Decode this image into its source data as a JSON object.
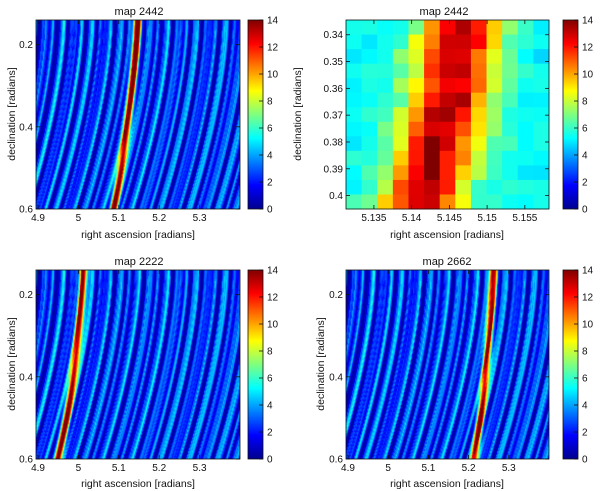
{
  "chart_data": [
    {
      "type": "heatmap",
      "title": "map 2442",
      "xlabel": "right ascension [radians]",
      "ylabel": "declination [radians]",
      "xlim": [
        4.895,
        5.4
      ],
      "ylim": [
        0.6,
        0.14
      ],
      "xticks": [
        4.9,
        5,
        5.1,
        5.2,
        5.3
      ],
      "xtick_labels": [
        "4.9",
        "5",
        "5.1",
        "5.2",
        "5.3"
      ],
      "yticks": [
        0.2,
        0.4,
        0.6
      ],
      "ytick_labels": [
        "0.2",
        "0.4",
        "0.6"
      ],
      "colorbar": {
        "min": 0,
        "max": 14,
        "ticks": [
          "0",
          "2",
          "4",
          "6",
          "8",
          "10",
          "12",
          "14"
        ]
      },
      "pattern": "arc_stripes",
      "ridge": {
        "ra_at_top": 5.146,
        "ra_at_bottom": 5.087,
        "peak_value": 13
      },
      "background_level": "low (1-6) with thin concentric stripes"
    },
    {
      "type": "heatmap",
      "title": "map 2442",
      "xlabel": "right ascension [radians]",
      "ylabel": "declination [radians]",
      "xlim": [
        5.1313,
        5.1582
      ],
      "ylim": [
        0.405,
        0.3345
      ],
      "xticks": [
        5.135,
        5.14,
        5.145,
        5.15,
        5.155
      ],
      "xtick_labels": [
        "5.135",
        "5.14",
        "5.145",
        "5.15",
        "5.155"
      ],
      "yticks": [
        0.34,
        0.35,
        0.36,
        0.37,
        0.38,
        0.39,
        0.4
      ],
      "ytick_labels": [
        "0.34",
        "0.35",
        "0.36",
        "0.37",
        "0.38",
        "0.39",
        "0.4"
      ],
      "colorbar": {
        "min": 0,
        "max": 14,
        "ticks": [
          "0",
          "2",
          "4",
          "6",
          "8",
          "10",
          "12",
          "14"
        ]
      },
      "pattern": "pixel_grid",
      "grid_rows": 13,
      "grid_cols": 13,
      "ridge": {
        "ra_at_top": 5.1465,
        "ra_at_bottom": 5.141,
        "peak_value": 13.5
      },
      "background_level": "about 5 (cyan) away from the ridge"
    },
    {
      "type": "heatmap",
      "title": "map 2222",
      "xlabel": "right ascension [radians]",
      "ylabel": "declination [radians]",
      "xlim": [
        4.895,
        5.4
      ],
      "ylim": [
        0.6,
        0.14
      ],
      "xticks": [
        4.9,
        5,
        5.1,
        5.2,
        5.3
      ],
      "xtick_labels": [
        "4.9",
        "5",
        "5.1",
        "5.2",
        "5.3"
      ],
      "yticks": [
        0.2,
        0.4,
        0.6
      ],
      "ytick_labels": [
        "0.2",
        "0.4",
        "0.6"
      ],
      "colorbar": {
        "min": 0,
        "max": 14,
        "ticks": [
          "0",
          "2",
          "4",
          "6",
          "8",
          "10",
          "12",
          "14"
        ]
      },
      "pattern": "arc_stripes",
      "ridge": {
        "ra_at_top": 5.013,
        "ra_at_bottom": 4.95,
        "peak_value": 12.5
      },
      "background_level": "low (1-6) with thin concentric stripes"
    },
    {
      "type": "heatmap",
      "title": "map 2662",
      "xlabel": "right ascension [radians]",
      "ylabel": "declination [radians]",
      "xlim": [
        4.895,
        5.4
      ],
      "ylim": [
        0.6,
        0.14
      ],
      "xticks": [
        4.9,
        5,
        5.1,
        5.2,
        5.3
      ],
      "xtick_labels": [
        "4.9",
        "5",
        "5.1",
        "5.2",
        "5.3"
      ],
      "yticks": [
        0.2,
        0.4,
        0.6
      ],
      "ytick_labels": [
        "0.2",
        "0.4",
        "0.6"
      ],
      "colorbar": {
        "min": 0,
        "max": 14,
        "ticks": [
          "0",
          "2",
          "4",
          "6",
          "8",
          "10",
          "12",
          "14"
        ]
      },
      "pattern": "arc_stripes",
      "ridge": {
        "ra_at_top": 5.262,
        "ra_at_bottom": 5.215,
        "peak_value": 12
      },
      "background_level": "low (1-6) with thin concentric stripes"
    }
  ]
}
